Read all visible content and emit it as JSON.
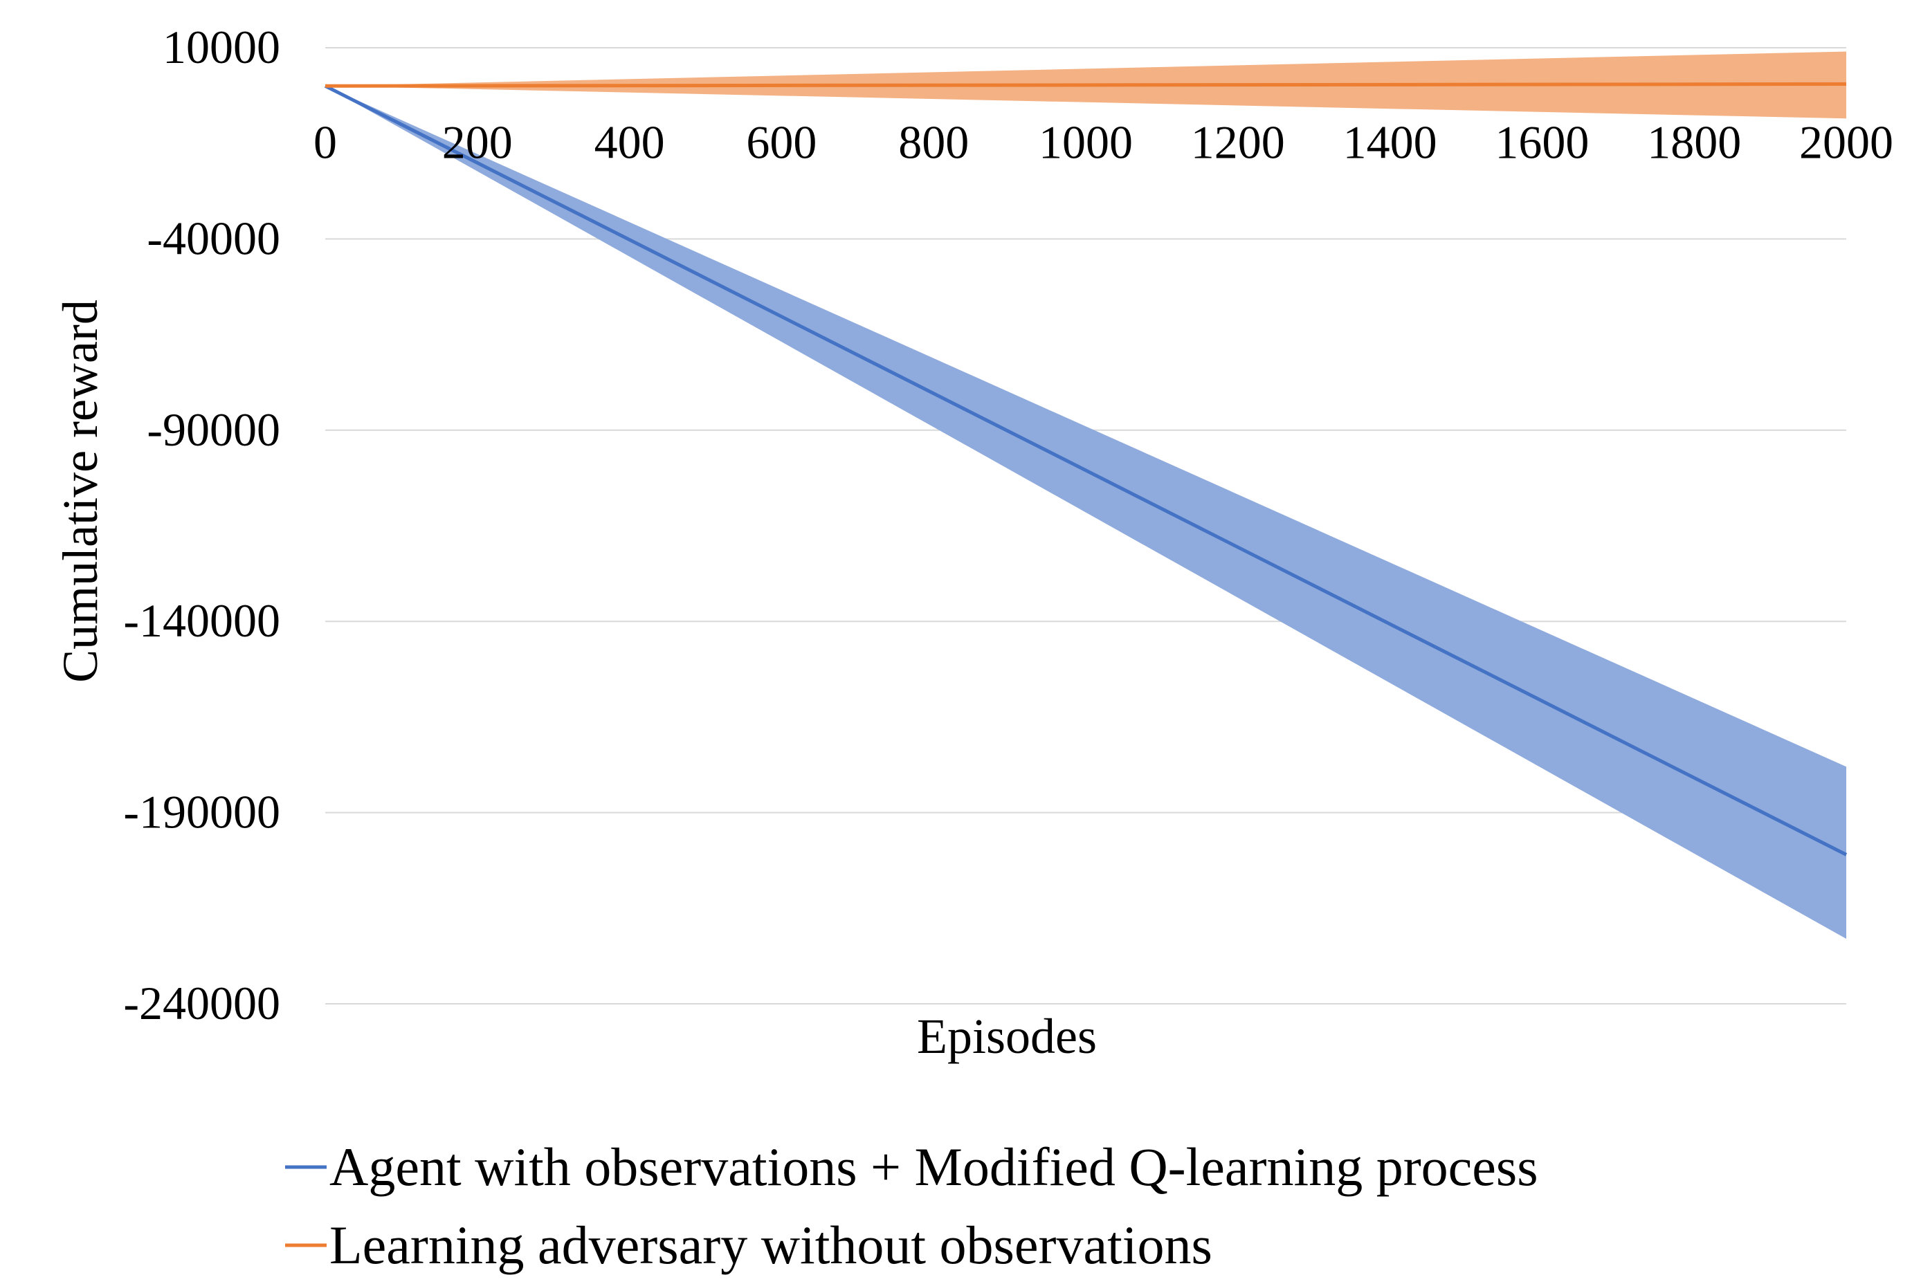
{
  "chart_data": {
    "type": "line",
    "xlabel": "Episodes",
    "ylabel": "Cumulative reward",
    "xlim": [
      0,
      2000
    ],
    "ylim": [
      -240000,
      10000
    ],
    "x_ticks": [
      0,
      200,
      400,
      600,
      800,
      1000,
      1200,
      1400,
      1600,
      1800,
      2000
    ],
    "y_ticks": [
      10000,
      -40000,
      -90000,
      -140000,
      -190000,
      -240000
    ],
    "x_tick_position": "along the y = 0 line",
    "grid": "horizontal",
    "legend_position": "bottom",
    "series": [
      {
        "name": "Agent with observations + Modified Q-learning process",
        "color": "#4472c4",
        "band_color": "#8faadc",
        "x": [
          0,
          2000
        ],
        "y": [
          0,
          -201000
        ],
        "band_upper": [
          0,
          -178000
        ],
        "band_lower": [
          0,
          -223000
        ]
      },
      {
        "name": "Learning adversary without observations",
        "color": "#ed7d31",
        "band_color": "#f4b183",
        "x": [
          0,
          2000
        ],
        "y": [
          0,
          500
        ],
        "band_upper": [
          0,
          9000
        ],
        "band_lower": [
          0,
          -8500
        ]
      }
    ]
  }
}
